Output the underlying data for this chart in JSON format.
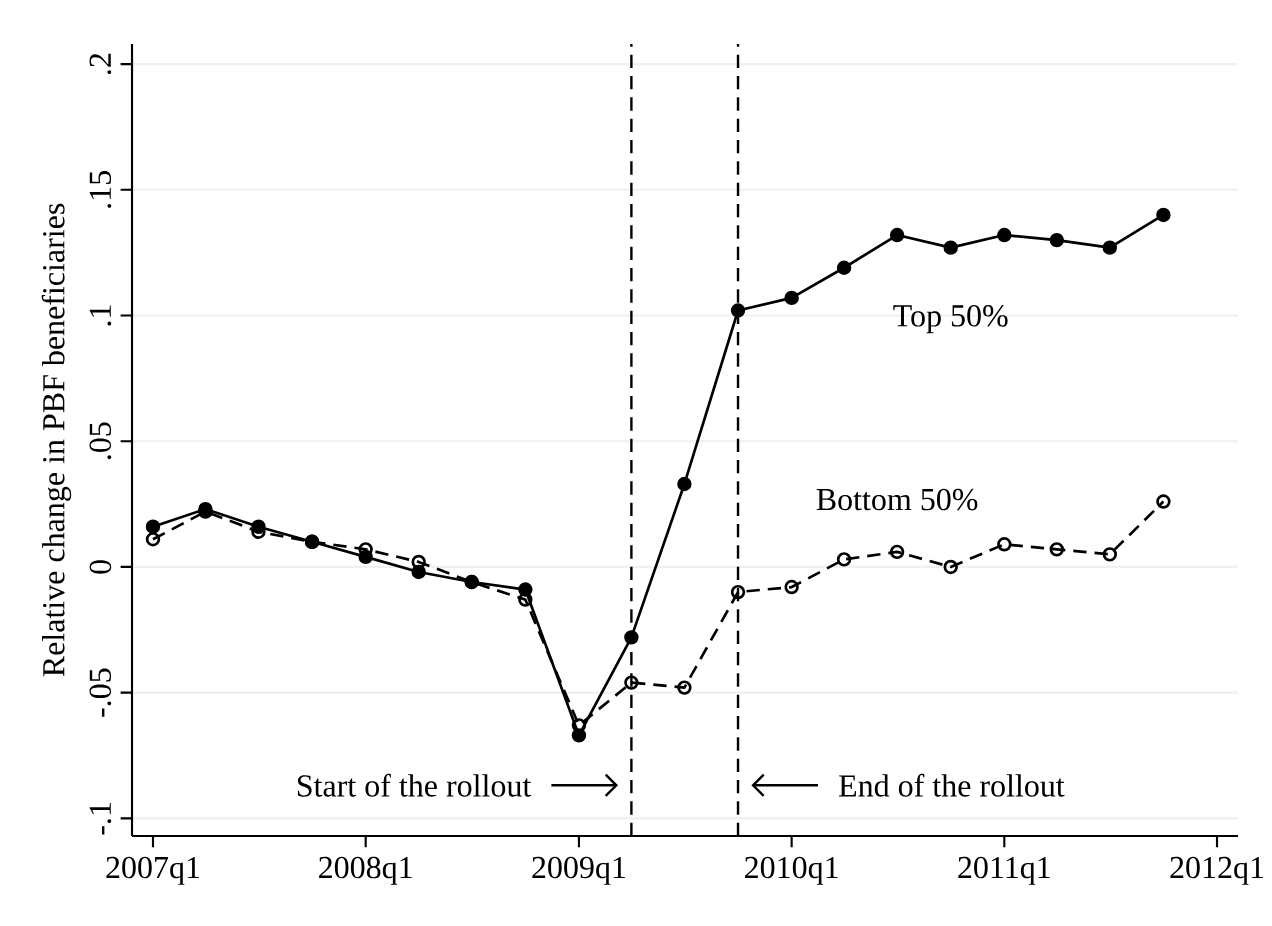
{
  "chart_data": {
    "type": "line",
    "ylabel": "Relative change in PBF beneficiaries",
    "x": [
      "2007-01-01",
      "2007-04-01",
      "2007-07-01",
      "2007-10-01",
      "2008-01-01",
      "2008-04-01",
      "2008-07-01",
      "2008-10-01",
      "2009-01-01",
      "2009-04-01",
      "2009-07-01",
      "2009-10-01",
      "2010-01-01",
      "2010-04-01",
      "2010-07-01",
      "2010-10-01",
      "2011-01-01",
      "2011-04-01",
      "2011-07-01",
      "2011-10-01"
    ],
    "xlim": [
      "2006-11-26",
      "2012-02-06"
    ],
    "xticks": [
      {
        "value": "2007-01-01",
        "label": "2007q1"
      },
      {
        "value": "2008-01-01",
        "label": "2008q1"
      },
      {
        "value": "2009-01-01",
        "label": "2009q1"
      },
      {
        "value": "2010-01-01",
        "label": "2010q1"
      },
      {
        "value": "2011-01-01",
        "label": "2011q1"
      },
      {
        "value": "2012-01-01",
        "label": "2012q1"
      }
    ],
    "ylim": [
      -0.107,
      0.208
    ],
    "yticks": [
      {
        "value": -0.1,
        "label": "-.1"
      },
      {
        "value": -0.05,
        "label": "-.05"
      },
      {
        "value": 0,
        "label": "0"
      },
      {
        "value": 0.05,
        "label": ".05"
      },
      {
        "value": 0.1,
        "label": ".1"
      },
      {
        "value": 0.15,
        "label": ".15"
      },
      {
        "value": 0.2,
        "label": ".2"
      }
    ],
    "grid": "y",
    "marker": "circle",
    "series": [
      {
        "name": "Top 50%",
        "color": "#000000",
        "line_style": "solid",
        "values": [
          0.016,
          0.023,
          0.016,
          0.01,
          0.004,
          -0.002,
          -0.006,
          -0.009,
          -0.067,
          -0.028,
          0.033,
          0.102,
          0.107,
          0.119,
          0.132,
          0.127,
          0.132,
          0.13,
          0.127,
          0.14
        ]
      },
      {
        "name": "Bottom 50%",
        "color": "#000000",
        "line_style": "dashed",
        "values": [
          0.011,
          0.022,
          0.014,
          0.01,
          0.007,
          0.002,
          -0.006,
          -0.013,
          -0.063,
          -0.046,
          -0.048,
          -0.01,
          -0.008,
          0.003,
          0.006,
          0.0,
          0.009,
          0.007,
          0.005,
          0.026
        ]
      }
    ],
    "ref_lines": [
      {
        "axis": "x",
        "value": "2009-04-01",
        "label": "Start of the rollout",
        "line_style": "dashed",
        "color": "#000000"
      },
      {
        "axis": "x",
        "value": "2009-10-01",
        "label": "End of the rollout",
        "line_style": "dashed",
        "color": "#000000"
      }
    ]
  }
}
